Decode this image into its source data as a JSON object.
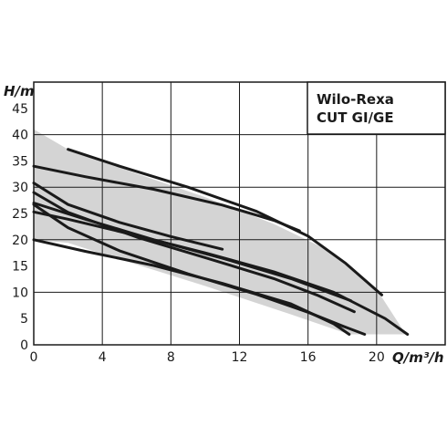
{
  "chart_data": {
    "type": "line",
    "title": "",
    "title_lines": [
      "Wilo-Rexa",
      "CUT GI/GE"
    ],
    "title_placement": "top-right box",
    "xlabel": "Q/m³/h",
    "ylabel": "H/m",
    "xlim": [
      0,
      24
    ],
    "ylim": [
      0,
      50
    ],
    "xticks": [
      "0",
      "4",
      "8",
      "12",
      "16",
      "20"
    ],
    "yticks": [
      "0",
      "5",
      "10",
      "15",
      "20",
      "25",
      "30",
      "35",
      "40",
      "45"
    ],
    "grid": true,
    "colors": {
      "curve": "#1a1a1a",
      "envelope": "#d4d4d4",
      "grid": "#1a1a1a"
    },
    "envelope": {
      "x": [
        0,
        2,
        6,
        10,
        14,
        17.5,
        20,
        21.7,
        20.3,
        18.4,
        15,
        10,
        5,
        2,
        0
      ],
      "y": [
        41,
        37.2,
        32.6,
        28.1,
        23,
        17.5,
        10.6,
        2,
        2,
        2,
        5.8,
        11.2,
        16.3,
        19.4,
        20
      ]
    },
    "series": [
      {
        "x": [
          2,
          5,
          9,
          13,
          16,
          18.2,
          20.3
        ],
        "y": [
          37.2,
          34,
          30,
          25.4,
          20.7,
          15.5,
          9.5
        ]
      },
      {
        "x": [
          0,
          3,
          7,
          11,
          14,
          15.5
        ],
        "y": [
          34,
          32,
          29.6,
          26.6,
          23.7,
          21.7
        ]
      },
      {
        "x": [
          0,
          2,
          5,
          8,
          11
        ],
        "y": [
          30.8,
          26.7,
          23.3,
          20.6,
          18.2
        ]
      },
      {
        "x": [
          0,
          2,
          6,
          10,
          14,
          16.5,
          18.7
        ],
        "y": [
          29,
          25.2,
          20.5,
          16.6,
          12.6,
          9.5,
          6.3
        ]
      },
      {
        "x": [
          0,
          3,
          7,
          11,
          15,
          18.5
        ],
        "y": [
          27,
          23.9,
          20,
          16.5,
          12.6,
          8.4
        ]
      },
      {
        "x": [
          0,
          2,
          6,
          10,
          14,
          17.5,
          20.5,
          21.8
        ],
        "y": [
          25.3,
          23.9,
          20.8,
          17.5,
          13.9,
          10,
          5,
          2
        ]
      },
      {
        "x": [
          0,
          2,
          5,
          9,
          13,
          16,
          18,
          19.3
        ],
        "y": [
          26.7,
          22.3,
          17.9,
          13.5,
          9.6,
          6.2,
          3.6,
          2
        ]
      },
      {
        "x": [
          0,
          3,
          7,
          11,
          15,
          17.5,
          18.4
        ],
        "y": [
          20,
          17.8,
          15.1,
          11.7,
          7.8,
          4,
          2
        ]
      }
    ]
  }
}
